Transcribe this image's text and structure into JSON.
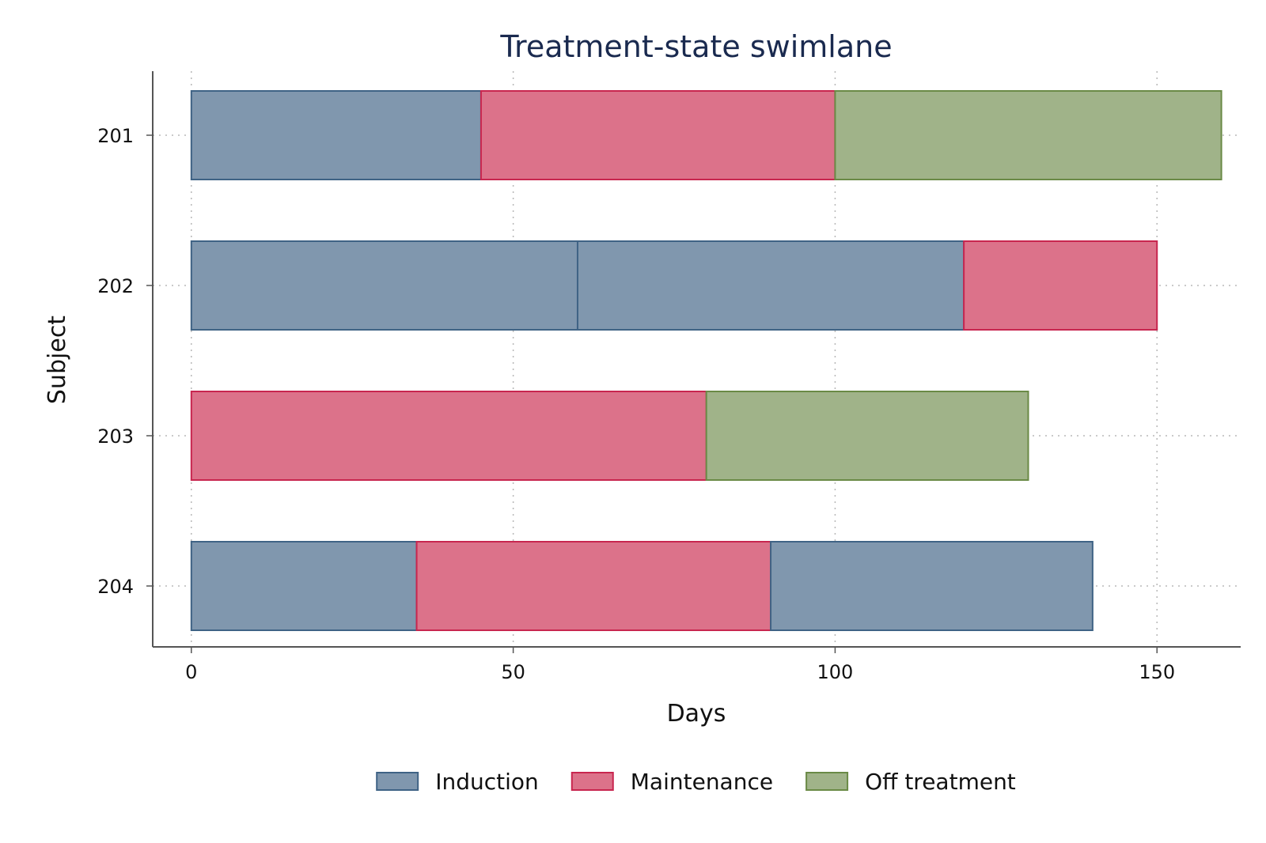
{
  "chart_data": {
    "type": "bar",
    "orientation": "horizontal-stacked-timeline",
    "title": "Treatment-state swimlane",
    "xlabel": "Days",
    "ylabel": "Subject",
    "xlim": [
      -6,
      163
    ],
    "xticks": [
      0,
      50,
      100,
      150
    ],
    "grid": true,
    "legend_position": "bottom",
    "states": [
      {
        "name": "Induction",
        "fill": "#8097ae",
        "stroke": "#3f6385"
      },
      {
        "name": "Maintenance",
        "fill": "#dc728a",
        "stroke": "#c8264f"
      },
      {
        "name": "Off treatment",
        "fill": "#a0b389",
        "stroke": "#6a8a46"
      }
    ],
    "subjects": [
      {
        "id": "201",
        "segments": [
          {
            "state": "Induction",
            "start": 0,
            "end": 45
          },
          {
            "state": "Maintenance",
            "start": 45,
            "end": 100
          },
          {
            "state": "Off treatment",
            "start": 100,
            "end": 160
          }
        ]
      },
      {
        "id": "202",
        "segments": [
          {
            "state": "Induction",
            "start": 0,
            "end": 60
          },
          {
            "state": "Induction",
            "start": 60,
            "end": 120
          },
          {
            "state": "Maintenance",
            "start": 120,
            "end": 150
          }
        ]
      },
      {
        "id": "203",
        "segments": [
          {
            "state": "Maintenance",
            "start": 0,
            "end": 80
          },
          {
            "state": "Off treatment",
            "start": 80,
            "end": 130
          }
        ]
      },
      {
        "id": "204",
        "segments": [
          {
            "state": "Induction",
            "start": 0,
            "end": 35
          },
          {
            "state": "Maintenance",
            "start": 35,
            "end": 90
          },
          {
            "state": "Induction",
            "start": 90,
            "end": 140
          }
        ]
      }
    ]
  }
}
